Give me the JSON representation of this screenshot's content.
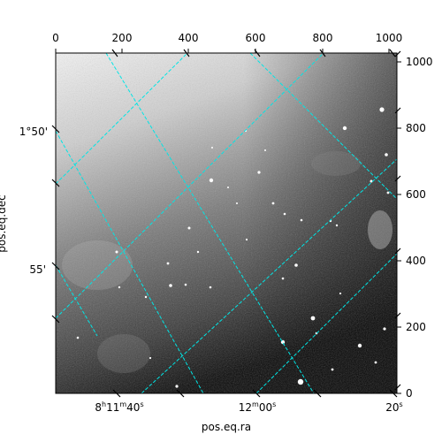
{
  "figure": {
    "xlabel": "pos.eq.ra",
    "ylabel": "pos.eq.dec"
  },
  "pixel_axes": {
    "top_ticks": [
      "0",
      "200",
      "400",
      "600",
      "800",
      "1000"
    ],
    "right_ticks": [
      "0",
      "200",
      "400",
      "600",
      "800",
      "1000"
    ]
  },
  "world_axes": {
    "ra_ticks": [
      {
        "h": "8",
        "hs": "h",
        "m": "11",
        "ms": "m",
        "s": "40",
        "ss": "s"
      },
      {
        "h": "",
        "hs": "",
        "m": "12",
        "ms": "m",
        "s": "00",
        "ss": "s"
      },
      {
        "h": "",
        "hs": "",
        "m": "",
        "ms": "",
        "s": "20",
        "ss": "s"
      }
    ],
    "dec_ticks": [
      "1°50'",
      "55'"
    ]
  },
  "colors": {
    "grid": "#00e5e5",
    "frame": "#000000",
    "image_dark": "#000000",
    "image_light": "#ffffff"
  }
}
